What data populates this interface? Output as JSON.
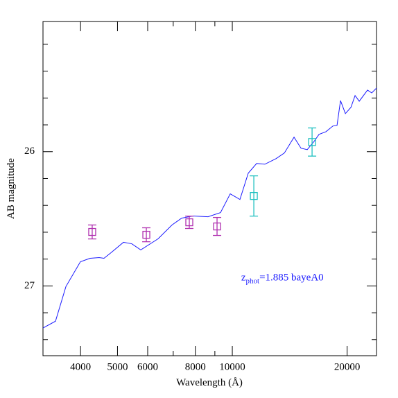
{
  "chart_data": {
    "type": "line",
    "x_label": "Wavelength (Å)",
    "y_label": "AB magnitude",
    "x_log": true,
    "y_inverted": true,
    "xlim": [
      3189,
      23880
    ],
    "ylim": [
      25.03,
      27.52
    ],
    "xticks": [
      4000,
      5000,
      6000,
      8000,
      10000,
      20000
    ],
    "xminor": [
      7000,
      9000
    ],
    "yticks": [
      26,
      27
    ],
    "yminor": [
      25.2,
      25.4,
      25.6,
      25.8,
      26.2,
      26.4,
      26.6,
      26.8,
      27.2,
      27.4
    ],
    "annotation": {
      "text": "z",
      "sub": "phot",
      "rest": "=1.885 bayeA0",
      "x": 10550,
      "y": 26.96,
      "color": "#1a1aff"
    },
    "series": [
      {
        "type": "line",
        "color": "#1a1aff",
        "x": [
          3189,
          3439,
          3662,
          3997,
          4240,
          4475,
          4609,
          4807,
          5183,
          5450,
          5754,
          6389,
          6947,
          7366,
          7878,
          8636,
          9313,
          9875,
          10471,
          11010,
          11579,
          12175,
          13020,
          13690,
          14516,
          15136,
          15718,
          16387,
          16876,
          17600,
          18350,
          18817,
          19216,
          19790,
          20462,
          20982,
          21516,
          22620,
          23201,
          23880
        ],
        "values": [
          27.314,
          27.263,
          27.005,
          26.82,
          26.794,
          26.789,
          26.794,
          26.753,
          26.675,
          26.686,
          26.732,
          26.649,
          26.546,
          26.495,
          26.479,
          26.485,
          26.454,
          26.314,
          26.356,
          26.16,
          26.088,
          26.093,
          26.052,
          26.01,
          25.892,
          25.974,
          25.985,
          25.923,
          25.871,
          25.851,
          25.809,
          25.804,
          25.619,
          25.716,
          25.67,
          25.582,
          25.624,
          25.541,
          25.562,
          25.526
        ]
      },
      {
        "type": "errorbar",
        "color": "#b030b0",
        "x": [
          4292,
          5951,
          7713,
          9120
        ],
        "values": [
          26.598,
          26.619,
          26.526,
          26.557
        ],
        "errors": [
          0.052,
          0.052,
          0.046,
          0.067
        ]
      },
      {
        "type": "errorbar",
        "color": "#20c0c0",
        "x": [
          11387,
          16185
        ],
        "values": [
          26.33,
          25.928
        ],
        "errors": [
          0.15,
          0.105
        ]
      }
    ]
  }
}
